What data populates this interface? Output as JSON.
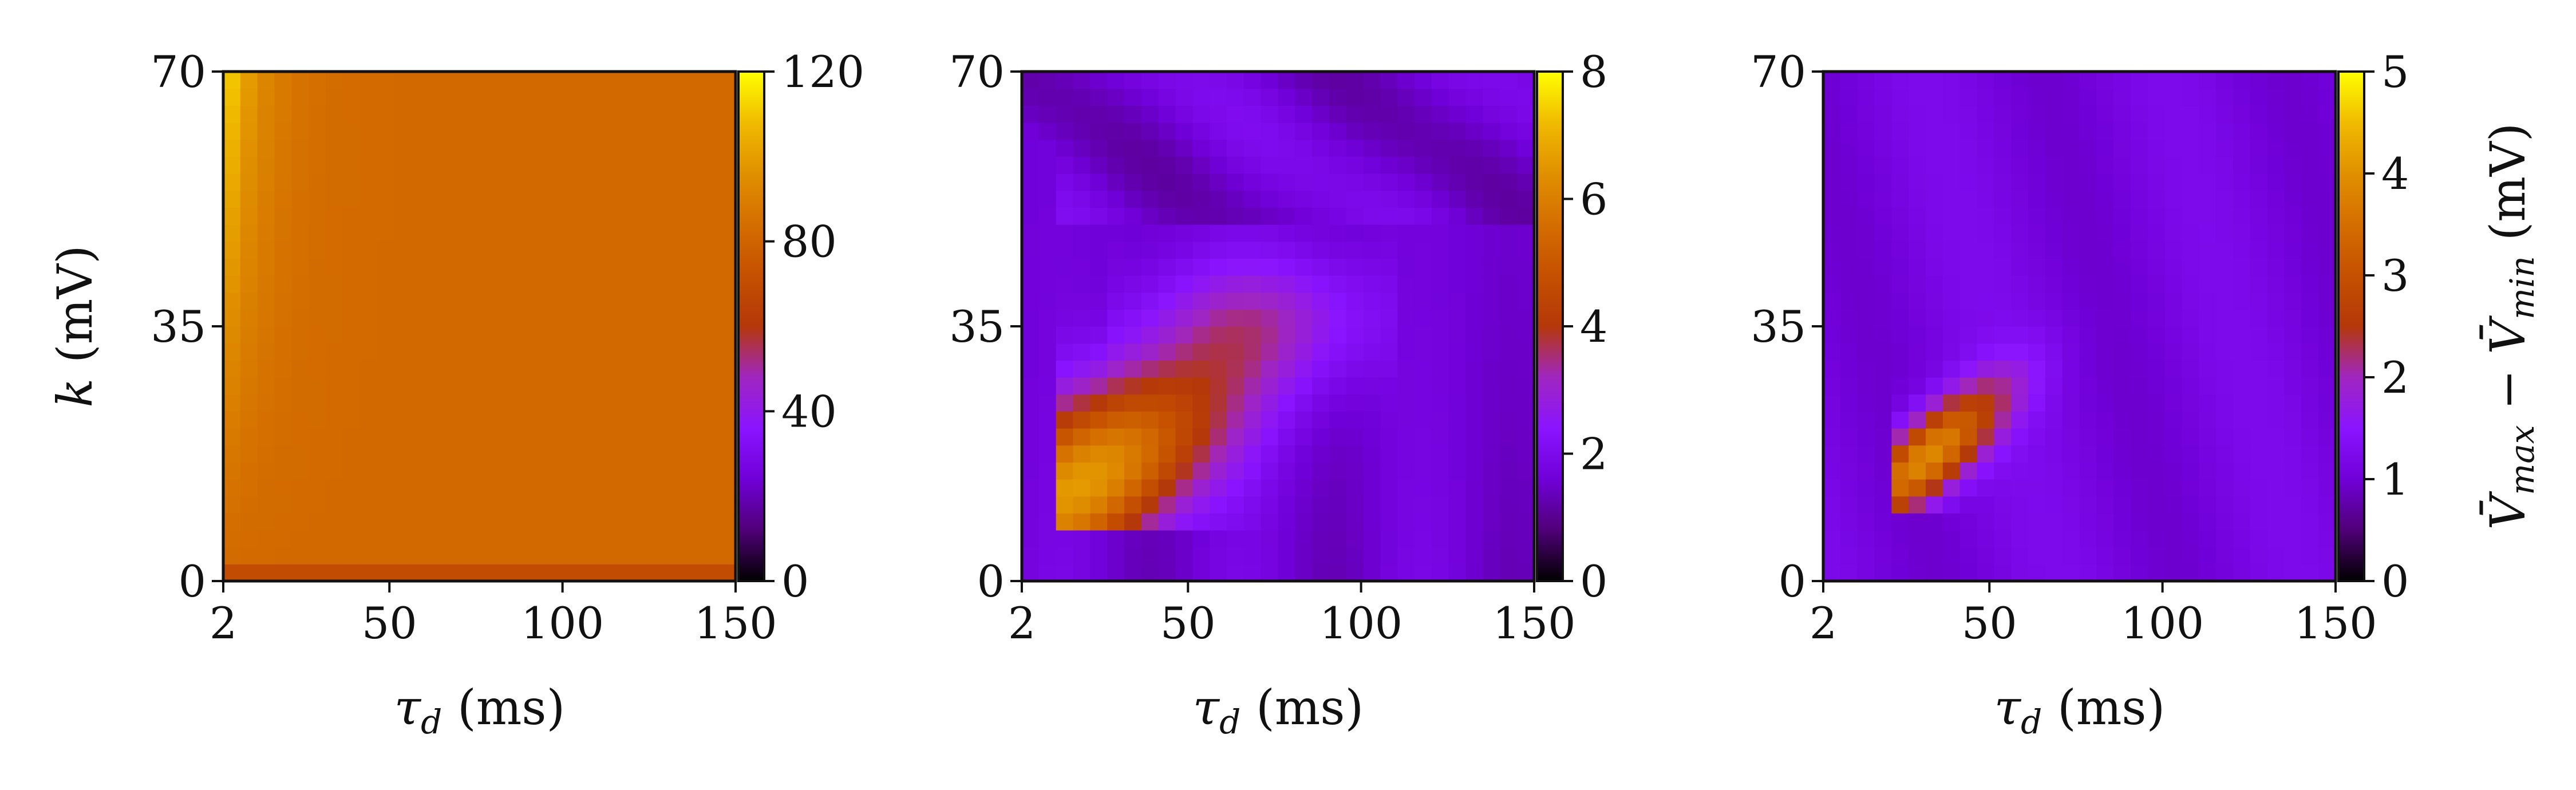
{
  "chart_data": [
    {
      "type": "heatmap",
      "panel": "left",
      "xlabel": "τd (ms)",
      "ylabel": "k (mV)",
      "x_ticks": [
        "2",
        "50",
        "100",
        "150"
      ],
      "y_ticks": [
        "0",
        "35",
        "70"
      ],
      "xlim": [
        2,
        150
      ],
      "ylim": [
        0,
        70
      ],
      "colorbar": {
        "vmin": 0,
        "vmax": 120,
        "ticks": [
          "0",
          "40",
          "80",
          "120"
        ],
        "label": ""
      },
      "description_values": {
        "background_value": 82,
        "corner_peak_value": 118,
        "bottom_row_value": 70
      }
    },
    {
      "type": "heatmap",
      "panel": "middle",
      "xlabel": "τd (ms)",
      "ylabel": "",
      "x_ticks": [
        "2",
        "50",
        "100",
        "150"
      ],
      "y_ticks": [
        "0",
        "35",
        "70"
      ],
      "xlim": [
        2,
        150
      ],
      "ylim": [
        0,
        70
      ],
      "colorbar": {
        "vmin": 0,
        "vmax": 8,
        "ticks": [
          "0",
          "2",
          "4",
          "6",
          "8"
        ],
        "label": ""
      },
      "description_values": {
        "background_value": 1.6,
        "peak_value": 6.6,
        "peak_location": {
          "x": 18,
          "y": 13
        }
      }
    },
    {
      "type": "heatmap",
      "panel": "right",
      "xlabel": "τd (ms)",
      "ylabel": "",
      "x_ticks": [
        "2",
        "50",
        "100",
        "150"
      ],
      "y_ticks": [
        "0",
        "35",
        "70"
      ],
      "xlim": [
        2,
        150
      ],
      "ylim": [
        0,
        70
      ],
      "colorbar": {
        "vmin": 0,
        "vmax": 5,
        "ticks": [
          "0",
          "1",
          "2",
          "3",
          "4",
          "5"
        ],
        "label": "V̄max − V̄min (mV)"
      },
      "description_values": {
        "background_value": 1.1,
        "peak_value": 3.9,
        "peak_location": {
          "x": 32,
          "y": 17
        }
      }
    }
  ],
  "colormap": "gnuplot",
  "colors": {
    "axis": "#111111",
    "background": "#ffffff"
  }
}
